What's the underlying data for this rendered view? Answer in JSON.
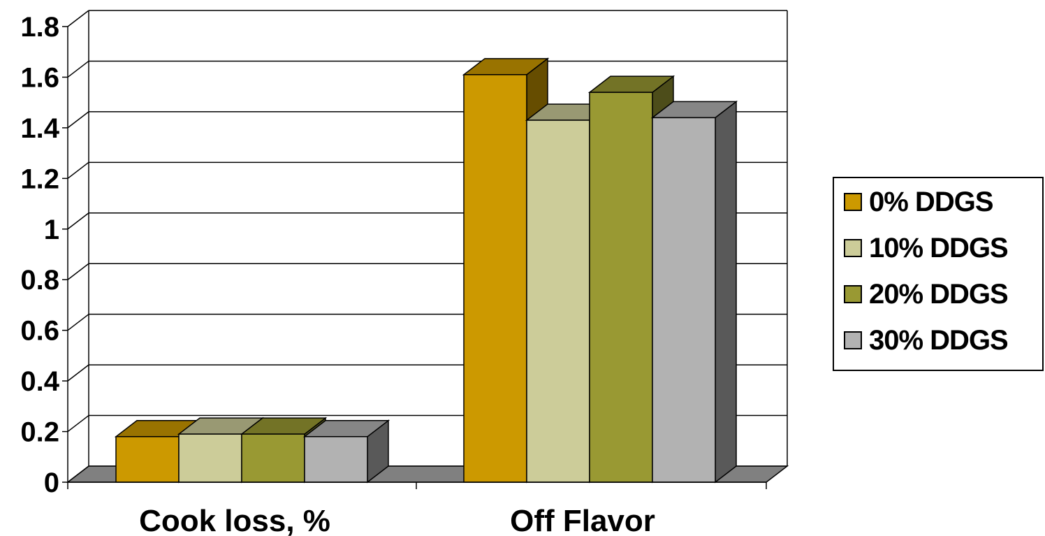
{
  "chart_data": {
    "type": "bar",
    "title": "",
    "xlabel": "",
    "ylabel": "",
    "categories": [
      "Cook loss, %",
      "Off Flavor"
    ],
    "series": [
      {
        "name": "0% DDGS",
        "values": [
          0.18,
          1.61
        ],
        "color": "#CC9900"
      },
      {
        "name": "10% DDGS",
        "values": [
          0.19,
          1.43
        ],
        "color": "#CCCC99"
      },
      {
        "name": "20% DDGS",
        "values": [
          0.19,
          1.54
        ],
        "color": "#999933"
      },
      {
        "name": "30% DDGS",
        "values": [
          0.18,
          1.44
        ],
        "color": "#B2B2B2"
      }
    ],
    "ylim": [
      0,
      1.8
    ],
    "yticks": [
      "0",
      "0.2",
      "0.4",
      "0.6",
      "0.8",
      "1",
      "1.2",
      "1.4",
      "1.6",
      "1.8"
    ],
    "grid": true,
    "legend_position": "right",
    "style_3d": true
  }
}
